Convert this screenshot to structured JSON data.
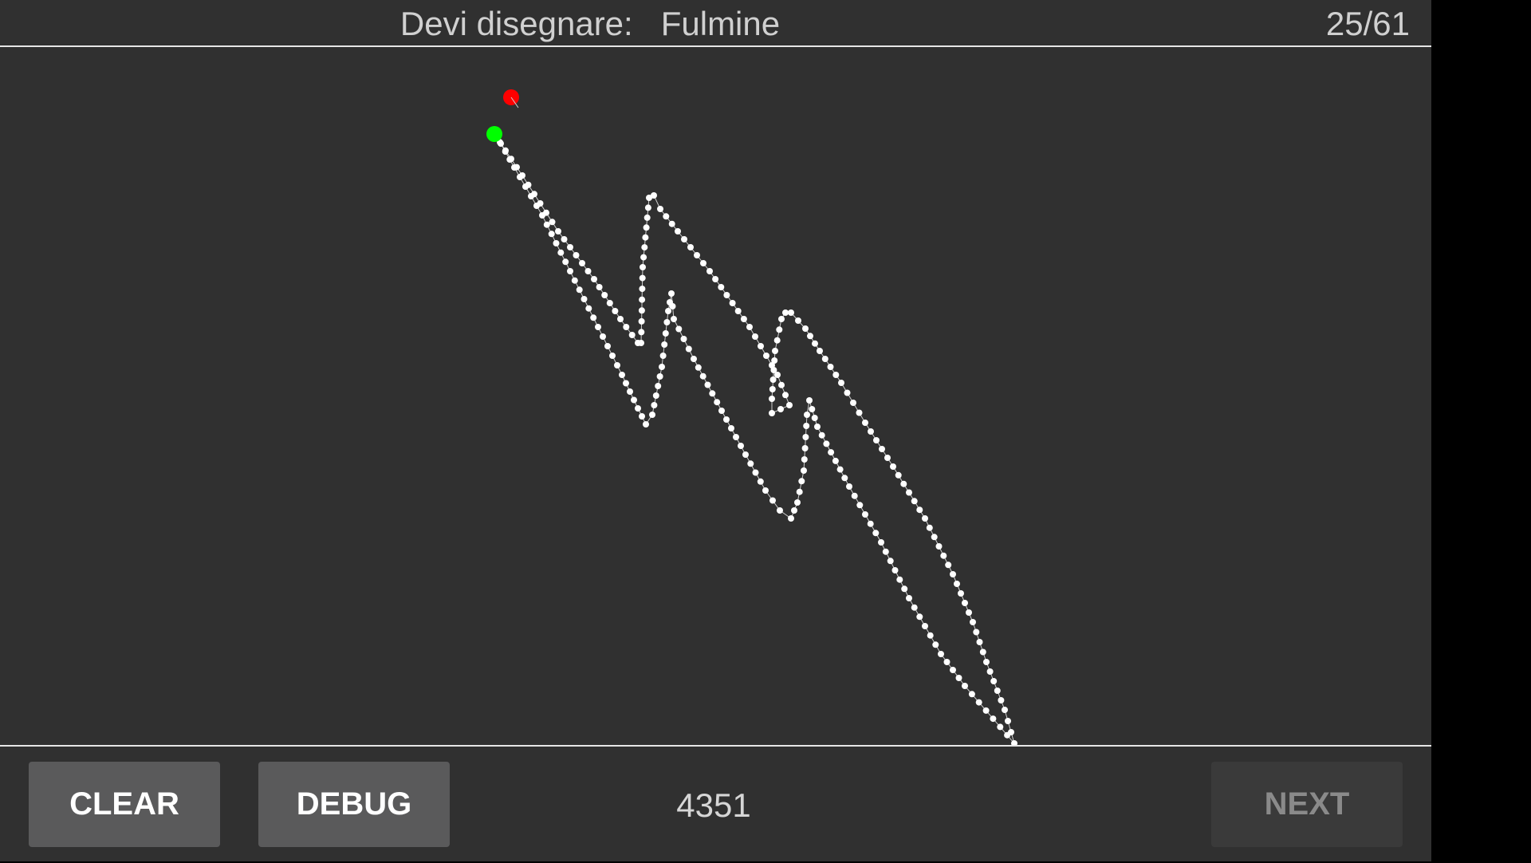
{
  "header": {
    "prompt_label": "Devi disegnare:",
    "prompt_word": "Fulmine",
    "counter": "25/61"
  },
  "footer": {
    "clear_label": "CLEAR",
    "debug_label": "DEBUG",
    "score": "4351",
    "next_label": "NEXT",
    "next_enabled": false
  },
  "colors": {
    "background": "#303030",
    "stroke_points": "#ffffff",
    "start_marker": "#00ff00",
    "end_marker": "#ff0000"
  },
  "stroke": {
    "description": "lightning-bolt",
    "start_marker": "green",
    "end_marker": "red"
  }
}
